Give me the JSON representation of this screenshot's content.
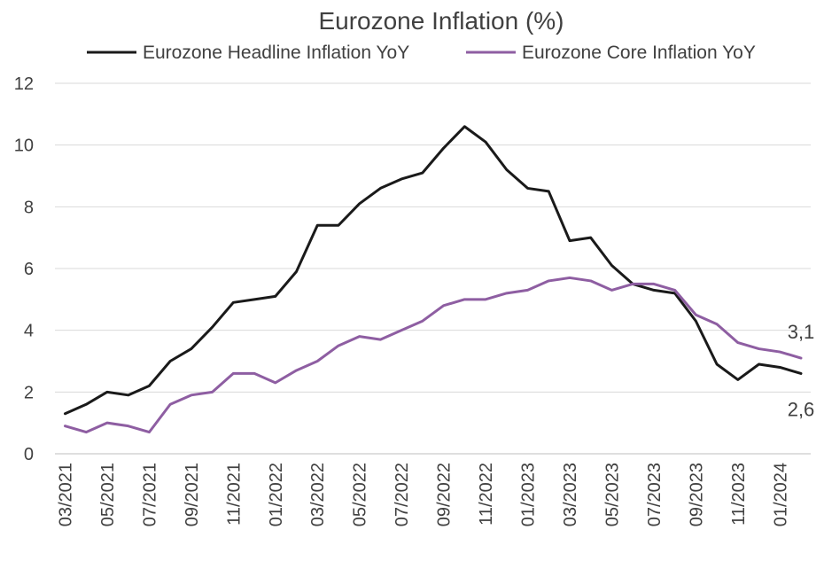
{
  "chart_data": {
    "type": "line",
    "title": "Eurozone Inflation (%)",
    "xlabel": "",
    "ylabel": "",
    "ylim": [
      0,
      12
    ],
    "yticks": [
      0,
      2,
      4,
      6,
      8,
      10,
      12
    ],
    "grid": true,
    "legend_position": "top",
    "x": [
      "03/2021",
      "04/2021",
      "05/2021",
      "06/2021",
      "07/2021",
      "08/2021",
      "09/2021",
      "10/2021",
      "11/2021",
      "12/2021",
      "01/2022",
      "02/2022",
      "03/2022",
      "04/2022",
      "05/2022",
      "06/2022",
      "07/2022",
      "08/2022",
      "09/2022",
      "10/2022",
      "11/2022",
      "12/2022",
      "01/2023",
      "02/2023",
      "03/2023",
      "04/2023",
      "05/2023",
      "06/2023",
      "07/2023",
      "08/2023",
      "09/2023",
      "10/2023",
      "11/2023",
      "12/2023",
      "01/2024",
      "02/2024"
    ],
    "xtick_labels": [
      "03/2021",
      "05/2021",
      "07/2021",
      "09/2021",
      "11/2021",
      "01/2022",
      "03/2022",
      "05/2022",
      "07/2022",
      "09/2022",
      "11/2022",
      "01/2023",
      "03/2023",
      "05/2023",
      "07/2023",
      "09/2023",
      "11/2023",
      "01/2024"
    ],
    "series": [
      {
        "name": "Eurozone Headline Inflation YoY",
        "color": "#1a1a1a",
        "values": [
          1.3,
          1.6,
          2.0,
          1.9,
          2.2,
          3.0,
          3.4,
          4.1,
          4.9,
          5.0,
          5.1,
          5.9,
          7.4,
          7.4,
          8.1,
          8.6,
          8.9,
          9.1,
          9.9,
          10.6,
          10.1,
          9.2,
          8.6,
          8.5,
          6.9,
          7.0,
          6.1,
          5.5,
          5.3,
          5.2,
          4.3,
          2.9,
          2.4,
          2.9,
          2.8,
          2.6
        ],
        "end_label": "2,6"
      },
      {
        "name": "Eurozone Core Inflation YoY",
        "color": "#8e5ea2",
        "values": [
          0.9,
          0.7,
          1.0,
          0.9,
          0.7,
          1.6,
          1.9,
          2.0,
          2.6,
          2.6,
          2.3,
          2.7,
          3.0,
          3.5,
          3.8,
          3.7,
          4.0,
          4.3,
          4.8,
          5.0,
          5.0,
          5.2,
          5.3,
          5.6,
          5.7,
          5.6,
          5.3,
          5.5,
          5.5,
          5.3,
          4.5,
          4.2,
          3.6,
          3.4,
          3.3,
          3.1
        ],
        "end_label": "3,1"
      }
    ]
  }
}
